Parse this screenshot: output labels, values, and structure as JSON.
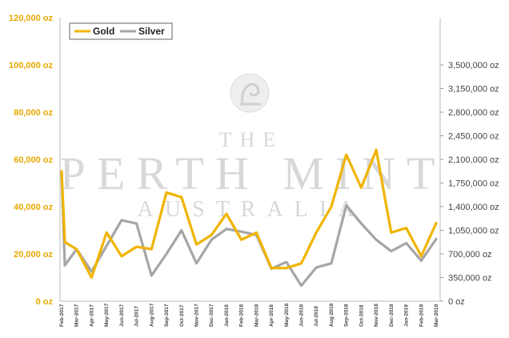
{
  "watermark": {
    "line1": "THE",
    "line2": "PERTH MINT",
    "line3": "AUSTRALIA"
  },
  "chart_data": {
    "type": "line",
    "title": "",
    "xlabel": "",
    "ylabel_left": "",
    "ylabel_right": "",
    "legend_position": "top-left",
    "grid": false,
    "categories": [
      "Feb-2017",
      "Mar-2017",
      "Apr-2017",
      "May-2017",
      "Jun-2017",
      "Jul-2017",
      "Aug-2017",
      "Sep-2017",
      "Oct-2017",
      "Nov-2017",
      "Dec-2017",
      "Jan-2018",
      "Feb-2018",
      "Mar-2018",
      "Apr-2018",
      "May-2018",
      "Jun-2018",
      "Jul-2018",
      "Aug-2018",
      "Sep-2018",
      "Oct-2018",
      "Nov-2018",
      "Dec-2018",
      "Jan-2019",
      "Feb-2019",
      "Mar-2019"
    ],
    "x_ticks": [
      "Feb-2017",
      "Mar-2017",
      "Apr-2017",
      "May-2017",
      "Jun-2017",
      "Jul-2017",
      "Aug-2017",
      "Sep-2017",
      "Oct-2017",
      "Nov-2017",
      "Dec-2017",
      "Jan-2018",
      "Feb-2018",
      "Mar-2018",
      "Apr-2018",
      "May-2018",
      "Jun-2018",
      "Jul-2018",
      "Aug-2018",
      "Sep-2018",
      "Oct-2018",
      "Nov-2018",
      "Dec-2018",
      "Jan-2019",
      "Feb-2019",
      "Mar-2019"
    ],
    "y_left": {
      "min": 0,
      "max": 120000,
      "ticks": [
        0,
        20000,
        40000,
        60000,
        80000,
        100000,
        120000
      ],
      "tick_labels": [
        "0 oz",
        "20,000 oz",
        "40,000 oz",
        "60,000 oz",
        "80,000 oz",
        "100,000 oz",
        "120,000 oz"
      ]
    },
    "y_right": {
      "min": 0,
      "max": 4200000,
      "ticks": [
        0,
        350000,
        700000,
        1050000,
        1400000,
        1750000,
        2100000,
        2450000,
        2800000,
        3150000,
        3500000
      ],
      "tick_labels": [
        "0 oz",
        "350,000 oz",
        "700,000 oz",
        "1,050,000 oz",
        "1,400,000 oz",
        "1,750,000 oz",
        "2,100,000 oz",
        "2,450,000 oz",
        "2,800,000 oz",
        "3,150,000 oz",
        "3,500,000 oz"
      ]
    },
    "series": [
      {
        "name": "Gold",
        "axis": "left",
        "color": "#f0b400",
        "points": [
          [
            "Feb-2017",
            55000
          ],
          [
            "Feb-2017",
            25000
          ],
          [
            "Mar-2017",
            22000
          ],
          [
            "Apr-2017",
            10000
          ],
          [
            "May-2017",
            29000
          ],
          [
            "Jun-2017",
            19000
          ],
          [
            "Jul-2017",
            23000
          ],
          [
            "Aug-2017",
            22000
          ],
          [
            "Sep-2017",
            46000
          ],
          [
            "Oct-2017",
            44000
          ],
          [
            "Nov-2017",
            24000
          ],
          [
            "Dec-2017",
            28000
          ],
          [
            "Jan-2018",
            37000
          ],
          [
            "Feb-2018",
            26000
          ],
          [
            "Mar-2018",
            29000
          ],
          [
            "Apr-2018",
            14000
          ],
          [
            "May-2018",
            14000
          ],
          [
            "Jun-2018",
            16000
          ],
          [
            "Jul-2018",
            29000
          ],
          [
            "Aug-2018",
            40000
          ],
          [
            "Sep-2018",
            62000
          ],
          [
            "Oct-2018",
            48000
          ],
          [
            "Nov-2018",
            64000
          ],
          [
            "Dec-2018",
            29000
          ],
          [
            "Jan-2019",
            31000
          ],
          [
            "Feb-2019",
            19000
          ],
          [
            "Mar-2019",
            33000
          ]
        ]
      },
      {
        "name": "Silver",
        "axis": "right",
        "color": "#a6a6a6",
        "points": [
          [
            "Feb-2017",
            1900000
          ],
          [
            "Feb-2017",
            530000
          ],
          [
            "Mar-2017",
            770000
          ],
          [
            "Apr-2017",
            440000
          ],
          [
            "May-2017",
            820000
          ],
          [
            "Jun-2017",
            1200000
          ],
          [
            "Jul-2017",
            1150000
          ],
          [
            "Aug-2017",
            380000
          ],
          [
            "Sep-2017",
            700000
          ],
          [
            "Oct-2017",
            1050000
          ],
          [
            "Nov-2017",
            560000
          ],
          [
            "Dec-2017",
            910000
          ],
          [
            "Jan-2018",
            1070000
          ],
          [
            "Feb-2018",
            1030000
          ],
          [
            "Mar-2018",
            980000
          ],
          [
            "Apr-2018",
            480000
          ],
          [
            "May-2018",
            580000
          ],
          [
            "Jun-2018",
            230000
          ],
          [
            "Jul-2018",
            500000
          ],
          [
            "Aug-2018",
            560000
          ],
          [
            "Sep-2018",
            1420000
          ],
          [
            "Oct-2018",
            1150000
          ],
          [
            "Nov-2018",
            910000
          ],
          [
            "Dec-2018",
            740000
          ],
          [
            "Jan-2019",
            860000
          ],
          [
            "Feb-2019",
            600000
          ],
          [
            "Mar-2019",
            920000
          ]
        ]
      }
    ]
  }
}
